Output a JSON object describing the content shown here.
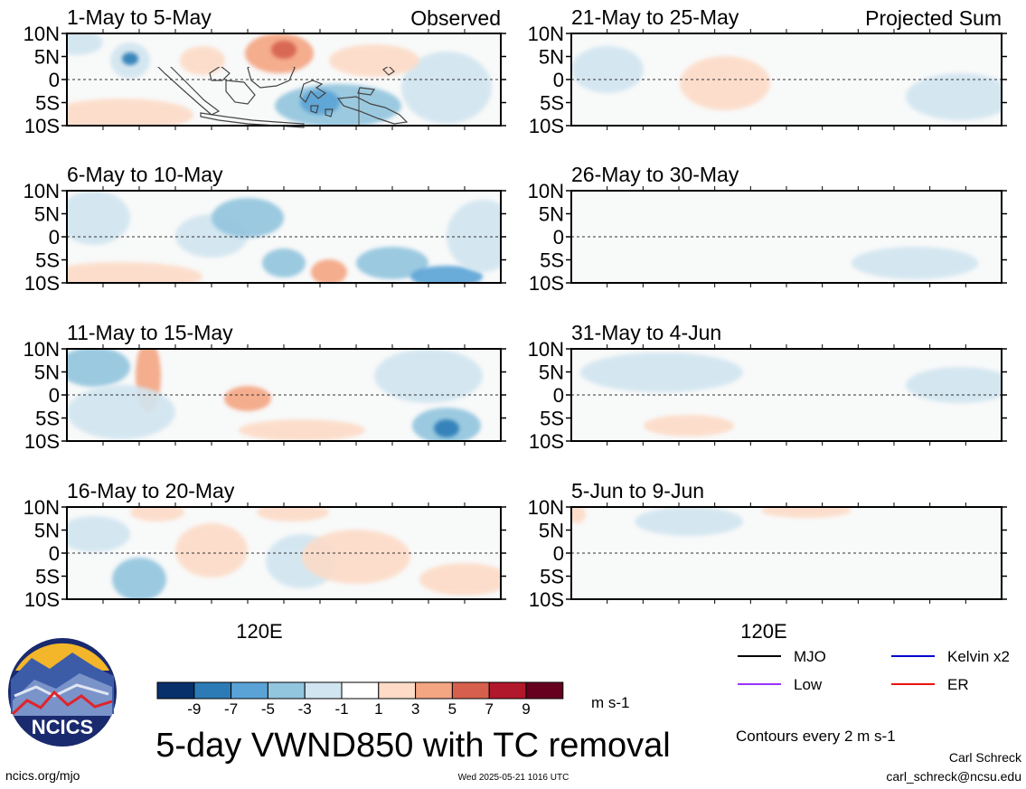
{
  "chart_data": {
    "type": "heatmap",
    "title": "5-day VWND850 with TC removal",
    "variable": "VWND850",
    "units": "m s-1",
    "contour_note": "Contours every 2 m s-1",
    "y_ticks": [
      "10N",
      "5N",
      "0",
      "5S",
      "10S"
    ],
    "x_tick": "120E",
    "left_column_label": "Observed",
    "right_column_label": "Projected Sum",
    "panels": [
      {
        "period": "1-May to 5-May",
        "column": "Observed"
      },
      {
        "period": "6-May to 10-May",
        "column": "Observed"
      },
      {
        "period": "11-May to 15-May",
        "column": "Observed"
      },
      {
        "period": "16-May to 20-May",
        "column": "Observed"
      },
      {
        "period": "21-May to 25-May",
        "column": "Projected Sum"
      },
      {
        "period": "26-May to 30-May",
        "column": "Projected Sum"
      },
      {
        "period": "31-May to 4-Jun",
        "column": "Projected Sum"
      },
      {
        "period": "5-Jun to 9-Jun",
        "column": "Projected Sum"
      }
    ],
    "colorbar": {
      "labels": [
        "-9",
        "-7",
        "-5",
        "-3",
        "-1",
        "1",
        "3",
        "5",
        "7",
        "9"
      ],
      "colors": [
        "#08306b",
        "#2c7bb6",
        "#5aa3d6",
        "#92c5de",
        "#d1e5f0",
        "#ffffff",
        "#fddbc7",
        "#f4a582",
        "#d6604d",
        "#b2182b",
        "#67001f"
      ]
    },
    "legend": [
      {
        "name": "MJO",
        "color": "#000000"
      },
      {
        "name": "Kelvin x2",
        "color": "#0000cc"
      },
      {
        "name": "Low",
        "color": "#9933ff"
      },
      {
        "name": "ER",
        "color": "#ee1111"
      }
    ]
  },
  "logo": {
    "text": "NCICS"
  },
  "footer": {
    "left": "ncics.org/mjo",
    "center": "Wed 2025-05-21 1016 UTC",
    "author": "Carl Schreck",
    "email": "carl_schreck@ncsu.edu"
  }
}
